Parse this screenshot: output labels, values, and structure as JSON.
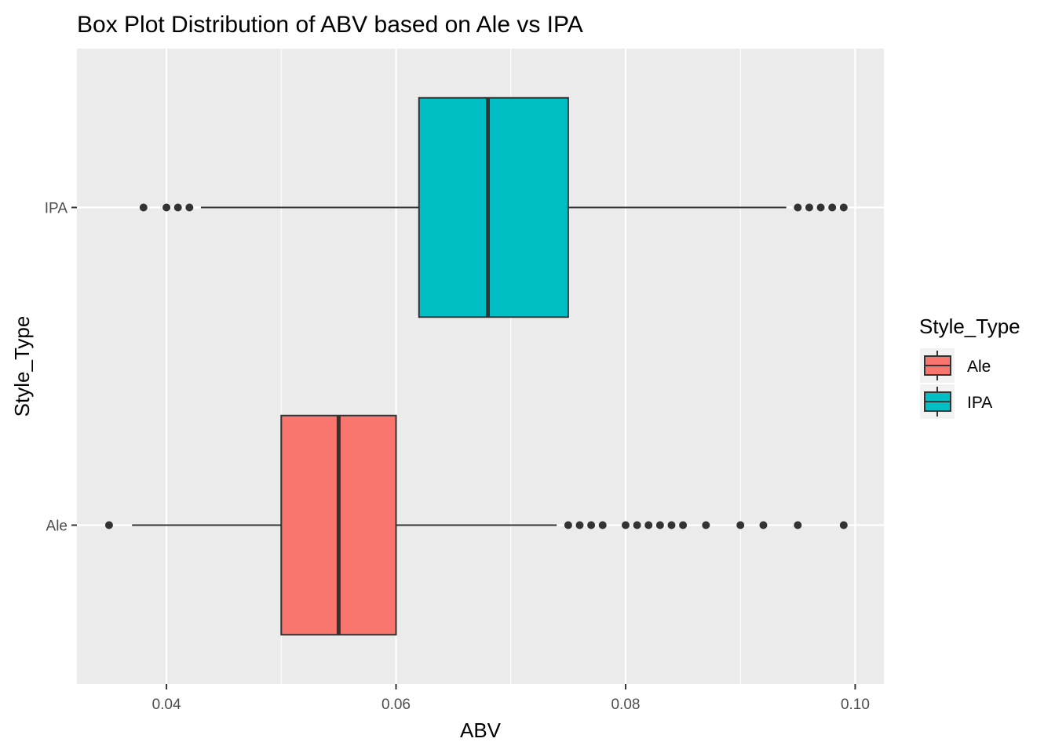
{
  "chart_data": {
    "type": "boxplot",
    "title": "Box Plot Distribution of ABV based on Ale vs IPA",
    "xlabel": "ABV",
    "ylabel": "Style_Type",
    "xlim": [
      0.0322,
      0.1025
    ],
    "x_ticks": [
      {
        "value": 0.04,
        "label": "0.04"
      },
      {
        "value": 0.06,
        "label": "0.06"
      },
      {
        "value": 0.08,
        "label": "0.08"
      },
      {
        "value": 0.1,
        "label": "0.10"
      }
    ],
    "categories": [
      "Ale",
      "IPA"
    ],
    "grid": true,
    "legend": {
      "title": "Style_Type",
      "position": "right",
      "entries": [
        {
          "label": "Ale",
          "color": "#F8766D"
        },
        {
          "label": "IPA",
          "color": "#00BFC4"
        }
      ]
    },
    "series": [
      {
        "name": "Ale",
        "color": "#F8766D",
        "whisker_low": 0.037,
        "q1": 0.05,
        "median": 0.055,
        "q3": 0.06,
        "whisker_high": 0.074,
        "outliers": [
          0.035,
          0.075,
          0.076,
          0.077,
          0.078,
          0.08,
          0.081,
          0.082,
          0.083,
          0.084,
          0.085,
          0.087,
          0.09,
          0.092,
          0.095,
          0.099
        ]
      },
      {
        "name": "IPA",
        "color": "#00BFC4",
        "whisker_low": 0.043,
        "q1": 0.062,
        "median": 0.068,
        "q3": 0.075,
        "whisker_high": 0.094,
        "outliers": [
          0.038,
          0.04,
          0.041,
          0.042,
          0.095,
          0.096,
          0.097,
          0.098,
          0.099
        ]
      }
    ]
  }
}
